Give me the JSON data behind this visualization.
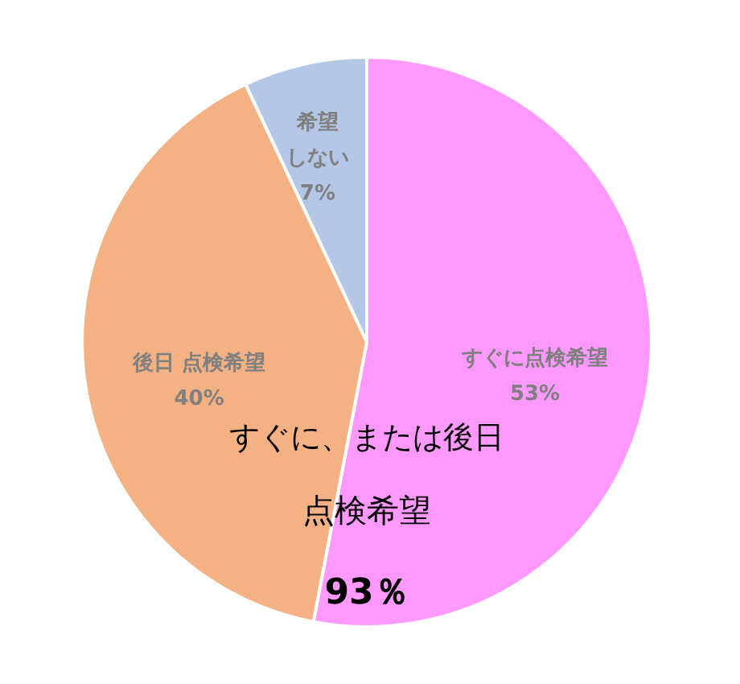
{
  "chart_data": {
    "type": "pie",
    "categories": [
      "すぐに点検希望",
      "後日 点検希望",
      "希望しない"
    ],
    "values": [
      53,
      40,
      7
    ],
    "colors": [
      "#ff99ff",
      "#f4b183",
      "#b4c7e7"
    ],
    "value_labels": [
      "53%",
      "40%",
      "7%"
    ],
    "annotations": [
      "すぐに、または後日",
      "点検希望",
      "93％"
    ]
  }
}
